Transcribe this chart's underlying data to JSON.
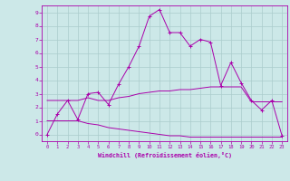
{
  "xlabel": "Windchill (Refroidissement éolien,°C)",
  "bg_color": "#cce8e8",
  "grid_color": "#aacccc",
  "line_color": "#aa00aa",
  "xlim": [
    -0.5,
    23.5
  ],
  "ylim": [
    -0.5,
    9.5
  ],
  "xticks": [
    0,
    1,
    2,
    3,
    4,
    5,
    6,
    7,
    8,
    9,
    10,
    11,
    12,
    13,
    14,
    15,
    16,
    17,
    18,
    19,
    20,
    21,
    22,
    23
  ],
  "yticks": [
    0,
    1,
    2,
    3,
    4,
    5,
    6,
    7,
    8,
    9
  ],
  "line1_x": [
    0,
    1,
    2,
    3,
    4,
    5,
    6,
    7,
    8,
    9,
    10,
    11,
    12,
    13,
    14,
    15,
    16,
    17,
    18,
    19,
    20,
    21,
    22,
    23
  ],
  "line1_y": [
    0.0,
    1.5,
    2.5,
    1.1,
    3.0,
    3.1,
    2.2,
    3.7,
    5.0,
    6.5,
    8.7,
    9.2,
    7.5,
    7.5,
    6.5,
    7.0,
    6.8,
    3.6,
    5.3,
    3.8,
    2.5,
    1.8,
    2.5,
    -0.1
  ],
  "line2_x": [
    0,
    1,
    2,
    3,
    4,
    5,
    6,
    7,
    8,
    9,
    10,
    11,
    12,
    13,
    14,
    15,
    16,
    17,
    18,
    19,
    20,
    21,
    22,
    23
  ],
  "line2_y": [
    2.5,
    2.5,
    2.5,
    2.5,
    2.7,
    2.5,
    2.5,
    2.7,
    2.8,
    3.0,
    3.1,
    3.2,
    3.2,
    3.3,
    3.3,
    3.4,
    3.5,
    3.5,
    3.5,
    3.5,
    2.4,
    2.4,
    2.4,
    2.4
  ],
  "line3_x": [
    0,
    1,
    2,
    3,
    4,
    5,
    6,
    7,
    8,
    9,
    10,
    11,
    12,
    13,
    14,
    15,
    16,
    17,
    18,
    19,
    20,
    21,
    22,
    23
  ],
  "line3_y": [
    1.0,
    1.0,
    1.0,
    1.0,
    0.8,
    0.7,
    0.5,
    0.4,
    0.3,
    0.2,
    0.1,
    0.0,
    -0.1,
    -0.1,
    -0.2,
    -0.2,
    -0.2,
    -0.2,
    -0.2,
    -0.2,
    -0.2,
    -0.2,
    -0.2,
    -0.2
  ]
}
